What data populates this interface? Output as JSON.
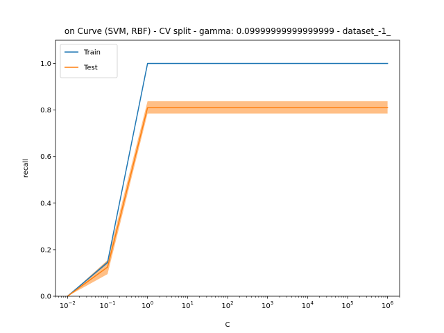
{
  "chart_data": {
    "type": "line",
    "title": "on Curve (SVM, RBF) - CV split - gamma: 0.09999999999999999 - dataset_-1_",
    "xlabel": "C",
    "ylabel": "recall",
    "x_scale": "log",
    "x": [
      0.01,
      0.1,
      1,
      10,
      100,
      1000,
      10000,
      100000,
      1000000
    ],
    "xlim": [
      0.005,
      2000000
    ],
    "ylim": [
      0.0,
      1.1
    ],
    "x_ticks": [
      {
        "value": 0.01,
        "base": "10",
        "exp": "−2"
      },
      {
        "value": 0.1,
        "base": "10",
        "exp": "−1"
      },
      {
        "value": 1,
        "base": "10",
        "exp": "0"
      },
      {
        "value": 10,
        "base": "10",
        "exp": "1"
      },
      {
        "value": 100,
        "base": "10",
        "exp": "2"
      },
      {
        "value": 1000,
        "base": "10",
        "exp": "3"
      },
      {
        "value": 10000,
        "base": "10",
        "exp": "4"
      },
      {
        "value": 100000,
        "base": "10",
        "exp": "5"
      },
      {
        "value": 1000000,
        "base": "10",
        "exp": "6"
      }
    ],
    "y_ticks": [
      {
        "value": 0.0,
        "label": "0.0"
      },
      {
        "value": 0.2,
        "label": "0.2"
      },
      {
        "value": 0.4,
        "label": "0.4"
      },
      {
        "value": 0.6,
        "label": "0.6"
      },
      {
        "value": 0.8,
        "label": "0.8"
      },
      {
        "value": 1.0,
        "label": "1.0"
      }
    ],
    "grid": false,
    "legend_position": "top-left",
    "series": [
      {
        "name": "Train",
        "color": "#1f77b4",
        "values": [
          0.0,
          0.145,
          1.0,
          1.0,
          1.0,
          1.0,
          1.0,
          1.0,
          1.0
        ],
        "band_lower": [
          0.0,
          0.14,
          1.0,
          1.0,
          1.0,
          1.0,
          1.0,
          1.0,
          1.0
        ],
        "band_upper": [
          0.0,
          0.152,
          1.0,
          1.0,
          1.0,
          1.0,
          1.0,
          1.0,
          1.0
        ]
      },
      {
        "name": "Test",
        "color": "#ff7f0e",
        "values": [
          0.0,
          0.125,
          0.81,
          0.81,
          0.81,
          0.81,
          0.81,
          0.81,
          0.81
        ],
        "band_lower": [
          0.0,
          0.095,
          0.785,
          0.785,
          0.785,
          0.785,
          0.785,
          0.785,
          0.785
        ],
        "band_upper": [
          0.0,
          0.155,
          0.838,
          0.838,
          0.838,
          0.838,
          0.838,
          0.838,
          0.838
        ]
      }
    ]
  }
}
